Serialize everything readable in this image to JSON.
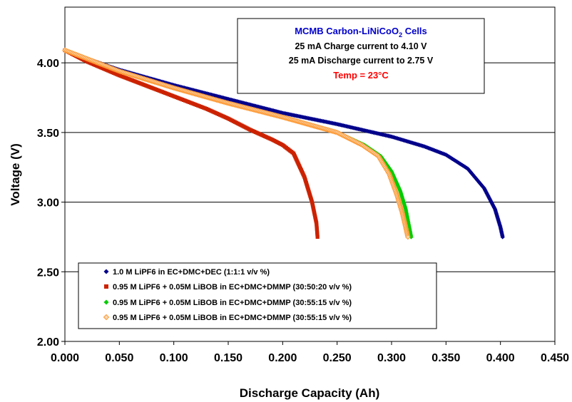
{
  "chart_data": {
    "type": "scatter",
    "xlabel": "Discharge Capacity (Ah)",
    "ylabel": "Voltage (V)",
    "xlim": [
      0.0,
      0.45
    ],
    "ylim": [
      2.0,
      4.4
    ],
    "x_ticks": [
      "0.000",
      "0.050",
      "0.100",
      "0.150",
      "0.200",
      "0.250",
      "0.300",
      "0.350",
      "0.400",
      "0.450"
    ],
    "y_ticks": [
      "2.00",
      "2.50",
      "3.00",
      "3.50",
      "4.00"
    ],
    "grid": "horizontal",
    "info_box": {
      "title": "MCMB Carbon-LiNiCoO",
      "title_subscript": "2",
      "title_suffix": " Cells",
      "line1": "25 mA Charge current to 4.10 V",
      "line2": "25 mA Discharge current to 2.75 V",
      "temp": "Temp = 23°C"
    },
    "legend_position": "bottom-left",
    "series": [
      {
        "name": "1.0 M LiPF6  in EC+DMC+DEC  (1:1:1  v/v %)",
        "color": "#00008b",
        "marker": "diamond",
        "points": [
          [
            0.0,
            4.09
          ],
          [
            0.02,
            4.03
          ],
          [
            0.05,
            3.95
          ],
          [
            0.1,
            3.84
          ],
          [
            0.15,
            3.74
          ],
          [
            0.2,
            3.64
          ],
          [
            0.25,
            3.56
          ],
          [
            0.3,
            3.47
          ],
          [
            0.33,
            3.4
          ],
          [
            0.35,
            3.34
          ],
          [
            0.37,
            3.24
          ],
          [
            0.385,
            3.1
          ],
          [
            0.395,
            2.95
          ],
          [
            0.4,
            2.82
          ],
          [
            0.402,
            2.75
          ]
        ]
      },
      {
        "name": "0.95 M LiPF6 + 0.05M LiBOB  in EC+DMC+DMMP  (30:50:20  v/v %)",
        "color": "#cc2200",
        "marker": "square",
        "points": [
          [
            0.0,
            4.09
          ],
          [
            0.02,
            4.01
          ],
          [
            0.05,
            3.91
          ],
          [
            0.08,
            3.82
          ],
          [
            0.1,
            3.76
          ],
          [
            0.13,
            3.67
          ],
          [
            0.15,
            3.6
          ],
          [
            0.17,
            3.52
          ],
          [
            0.19,
            3.45
          ],
          [
            0.2,
            3.41
          ],
          [
            0.21,
            3.35
          ],
          [
            0.22,
            3.18
          ],
          [
            0.227,
            3.0
          ],
          [
            0.231,
            2.85
          ],
          [
            0.232,
            2.75
          ]
        ]
      },
      {
        "name": "0.95 M LiPF6 + 0.05M LiBOB  in EC+DMC+DMMP  (30:55:15  v/v %)",
        "color": "#00cc00",
        "marker": "diamond",
        "points": [
          [
            0.0,
            4.09
          ],
          [
            0.02,
            4.03
          ],
          [
            0.05,
            3.94
          ],
          [
            0.1,
            3.82
          ],
          [
            0.15,
            3.71
          ],
          [
            0.2,
            3.61
          ],
          [
            0.25,
            3.5
          ],
          [
            0.275,
            3.41
          ],
          [
            0.29,
            3.33
          ],
          [
            0.3,
            3.22
          ],
          [
            0.308,
            3.08
          ],
          [
            0.313,
            2.95
          ],
          [
            0.316,
            2.83
          ],
          [
            0.318,
            2.75
          ]
        ]
      },
      {
        "name": "0.95 M LiPF6 + 0.05M LiBOB  in EC+DMC+DMMP  (30:55:15  v/v %)",
        "color": "#ff9933",
        "marker": "diamond-open",
        "points": [
          [
            0.0,
            4.09
          ],
          [
            0.02,
            4.03
          ],
          [
            0.05,
            3.94
          ],
          [
            0.1,
            3.82
          ],
          [
            0.15,
            3.71
          ],
          [
            0.2,
            3.61
          ],
          [
            0.25,
            3.5
          ],
          [
            0.273,
            3.41
          ],
          [
            0.288,
            3.33
          ],
          [
            0.298,
            3.2
          ],
          [
            0.305,
            3.05
          ],
          [
            0.31,
            2.92
          ],
          [
            0.313,
            2.82
          ],
          [
            0.315,
            2.75
          ]
        ]
      }
    ]
  }
}
